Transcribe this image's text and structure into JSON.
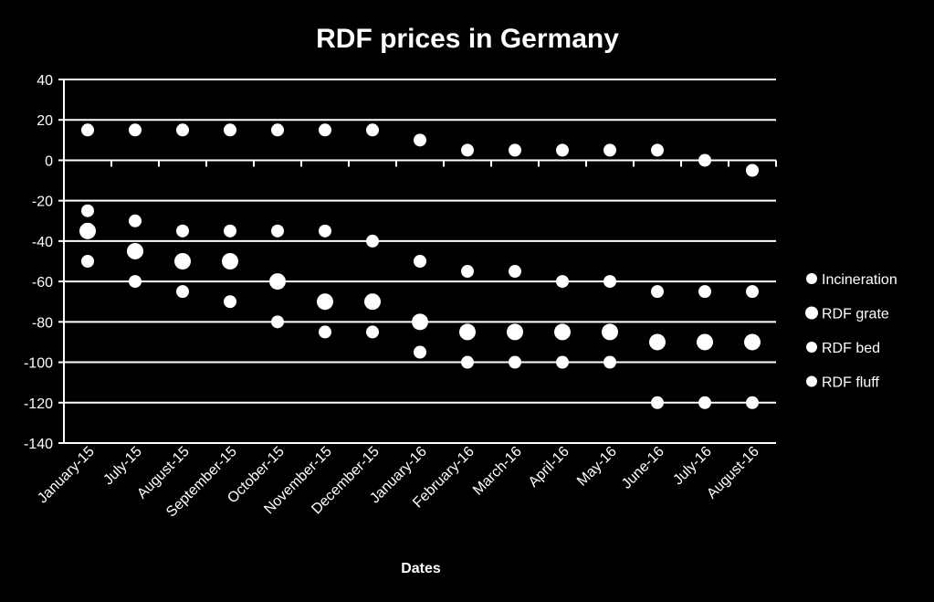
{
  "chart_data": {
    "type": "scatter",
    "title": "RDF prices in Germany",
    "xlabel": "Dates",
    "ylabel": "",
    "ylim": [
      -140,
      40
    ],
    "yticks": [
      40,
      20,
      0,
      -20,
      -40,
      -60,
      -80,
      -100,
      -120,
      -140
    ],
    "grid": true,
    "legend_position": "right",
    "categories": [
      "January-15",
      "July-15",
      "August-15",
      "September-15",
      "October-15",
      "November-15",
      "December-15",
      "January-16",
      "February-16",
      "March-16",
      "April-16",
      "May-16",
      "June-16",
      "July-16",
      "August-16"
    ],
    "series": [
      {
        "name": "Incineration",
        "values": [
          15,
          15,
          15,
          15,
          15,
          15,
          15,
          10,
          5,
          5,
          5,
          5,
          5,
          0,
          -5
        ]
      },
      {
        "name": "RDF  grate",
        "values": [
          -35,
          -45,
          -50,
          -50,
          -60,
          -70,
          -70,
          -80,
          -85,
          -85,
          -85,
          -85,
          -90,
          -90,
          -90
        ]
      },
      {
        "name": "RDF  bed",
        "values": [
          -25,
          -30,
          -35,
          -35,
          -35,
          -35,
          -40,
          -50,
          -55,
          -55,
          -60,
          -60,
          -65,
          -65,
          -65
        ]
      },
      {
        "name": "RDF  fluff",
        "values": [
          -50,
          -60,
          -65,
          -70,
          -80,
          -85,
          -85,
          -95,
          -100,
          -100,
          -100,
          -100,
          -120,
          -120,
          -120
        ]
      }
    ],
    "colors": {
      "background": "#000000",
      "marker": "#ffffff",
      "grid": "#ffffff",
      "text": "#ffffff"
    }
  }
}
